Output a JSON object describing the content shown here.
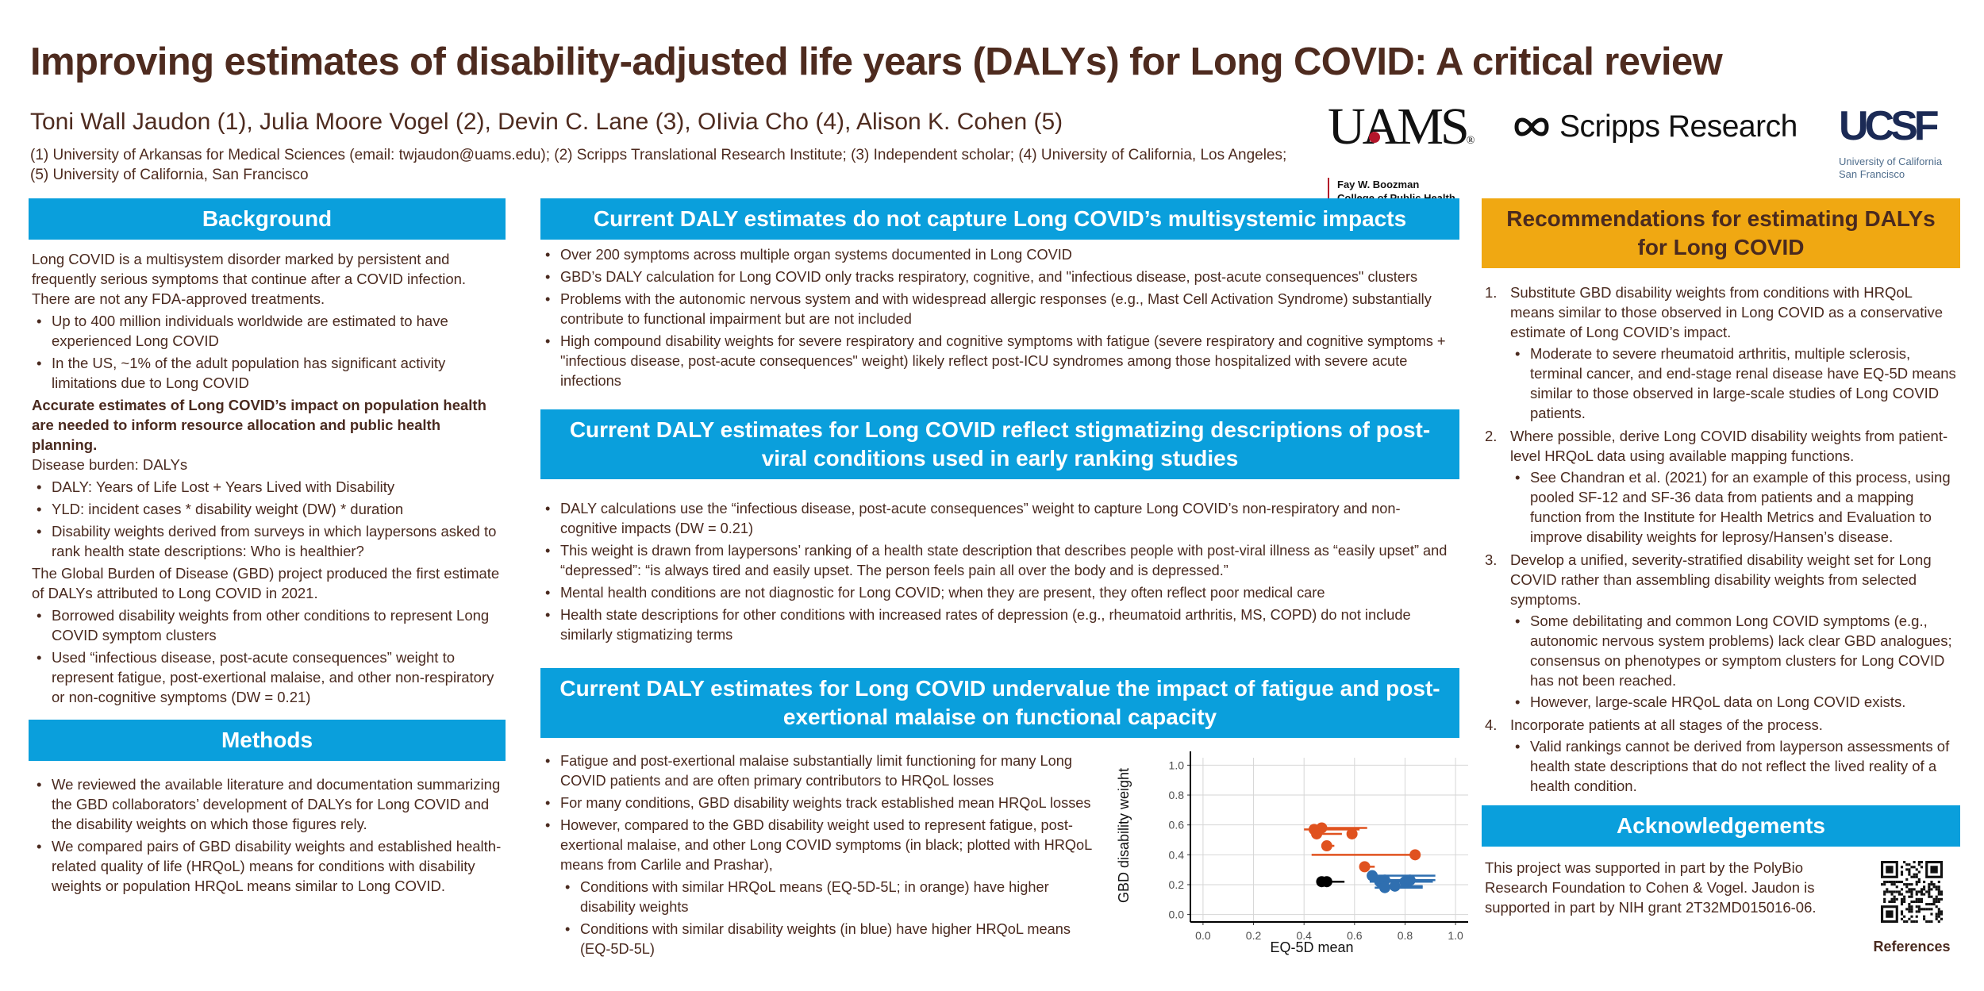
{
  "header": {
    "title": "Improving estimates of disability-adjusted life years (DALYs) for Long COVID: A critical review",
    "authors": "Toni Wall Jaudon (1), Julia Moore Vogel (2), Devin C. Lane (3), OIivia Cho (4), Alison K. Cohen (5)",
    "affiliations": "(1) University of Arkansas for Medical Sciences (email: twjaudon@uams.edu); (2) Scripps Translational Research Institute; (3) Independent scholar; (4) University of California, Los Angeles; (5) University of California, San Francisco"
  },
  "logos": {
    "uams": {
      "word": "UAMS",
      "reg": "®",
      "line1": "Fay W. Boozman",
      "line2": "College of Public Health"
    },
    "scripps": {
      "word": "Scripps Research",
      "icon": "infinity-loop-icon"
    },
    "ucsf": {
      "word": "UCSF",
      "line1": "University of California",
      "line2": "San Francisco"
    }
  },
  "colors": {
    "section_blue": "#0a9fdc",
    "section_orange": "#f0a812",
    "text_brown": "#4a2a1f",
    "series_orange": "#e0521f",
    "series_blue": "#2f6fb0",
    "series_black": "#000000"
  },
  "background": {
    "heading": "Background",
    "intro": "Long COVID is a multisystem disorder marked by persistent and frequently serious symptoms that continue after a COVID infection. There are not any FDA-approved treatments.",
    "bullets1": [
      "Up to 400 million individuals worldwide are estimated to have experienced Long COVID",
      "In the US, ~1% of the adult population has significant activity limitations due to Long COVID"
    ],
    "emphasis": "Accurate estimates of Long COVID’s impact on population health are needed to inform resource allocation and public health planning.",
    "burden_label": "Disease burden: DALYs",
    "bullets2": [
      "DALY: Years of Life Lost + Years Lived with Disability",
      "YLD: incident cases * disability weight (DW) * duration",
      "Disability weights derived from surveys in which laypersons asked to rank health state descriptions: Who is healthier?"
    ],
    "gbd_text": "The Global Burden of Disease (GBD) project produced the first estimate of DALYs attributed to Long COVID in 2021.",
    "bullets3": [
      "Borrowed disability weights from other conditions to represent Long COVID symptom clusters",
      "Used “infectious disease, post-acute consequences” weight to represent fatigue, post-exertional malaise, and other non-respiratory or non-cognitive symptoms (DW = 0.21)"
    ]
  },
  "methods": {
    "heading": "Methods",
    "bullets": [
      "We reviewed the available literature and documentation summarizing the GBD collaborators’ development of DALYs for Long COVID and the disability weights on which those figures rely.",
      "We compared pairs of GBD disability weights and established health-related quality of life (HRQoL) means for conditions with disability weights or population HRQoL means similar to Long COVID."
    ]
  },
  "multisystemic": {
    "heading": "Current DALY estimates do not capture Long COVID’s multisystemic impacts",
    "bullets": [
      "Over 200 symptoms across multiple organ systems documented in Long COVID",
      "GBD’s DALY calculation for Long COVID only tracks respiratory, cognitive, and \"infectious disease, post-acute consequences\" clusters",
      "Problems with the autonomic nervous system and with widespread allergic responses (e.g., Mast Cell Activation Syndrome) substantially contribute to functional impairment but are not included",
      "High compound disability weights for severe respiratory and cognitive symptoms with fatigue (severe respiratory and cognitive symptoms + \"infectious disease, post-acute consequences\" weight) likely reflect post-ICU syndromes among those hospitalized with severe acute infections"
    ]
  },
  "stigmatizing": {
    "heading": "Current DALY estimates for Long COVID reflect stigmatizing descriptions of post-viral conditions used in early ranking studies",
    "bullets": [
      "DALY calculations use the “infectious disease, post-acute consequences” weight to capture Long COVID’s non-respiratory and non-cognitive impacts (DW = 0.21)",
      "This weight is drawn from laypersons’ ranking of a health state description that describes people with post-viral illness as “easily upset” and “depressed”: “is always tired and easily upset. The person feels pain all over the body and is depressed.”",
      "Mental health conditions are not diagnostic for Long COVID; when they are present, they often reflect poor medical care",
      "Health state descriptions for other conditions with increased rates of depression (e.g., rheumatoid arthritis, MS, COPD) do not include similarly stigmatizing terms"
    ]
  },
  "fatigue": {
    "heading": "Current DALY estimates for Long COVID undervalue the impact of fatigue and post-exertional malaise on functional capacity",
    "bullets": [
      "Fatigue and post-exertional malaise substantially limit functioning for many Long COVID patients and are often primary contributors to HRQoL losses",
      "For many conditions, GBD disability weights track established mean HRQoL losses",
      "However, compared to the GBD disability weight used to represent fatigue, post-exertional malaise, and other Long COVID symptoms (in black; plotted with HRQoL means from Carlile and Prashar),"
    ],
    "sub_bullets": [
      "Conditions with similar HRQoL means (EQ-5D-5L; in orange) have higher disability weights",
      "Conditions with similar disability weights (in blue) have higher HRQoL means (EQ-5D-5L)"
    ]
  },
  "chart_data": {
    "type": "scatter",
    "title": "",
    "xlabel": "EQ-5D mean",
    "ylabel": "GBD disability weight",
    "xlim": [
      0,
      1
    ],
    "ylim": [
      0,
      1
    ],
    "xticks": [
      "0.0",
      "0.2",
      "0.4",
      "0.6",
      "0.8",
      "1.0"
    ],
    "yticks": [
      "0.0",
      "0.2",
      "0.4",
      "0.6",
      "0.8",
      "1.0"
    ],
    "grid": true,
    "legend": "none",
    "series": [
      {
        "name": "Similar HRQoL means (orange)",
        "color": "#e0521f",
        "points": [
          {
            "x": 0.44,
            "y": 0.57,
            "xmin": 0.4,
            "xmax": 0.62
          },
          {
            "x": 0.47,
            "y": 0.58,
            "xmin": 0.44,
            "xmax": 0.65
          },
          {
            "x": 0.45,
            "y": 0.54,
            "xmin": 0.43,
            "xmax": 0.55
          },
          {
            "x": 0.59,
            "y": 0.54,
            "xmin": 0.59,
            "xmax": 0.59
          },
          {
            "x": 0.49,
            "y": 0.46,
            "xmin": 0.49,
            "xmax": 0.52
          },
          {
            "x": 0.84,
            "y": 0.4,
            "xmin": 0.43,
            "xmax": 0.84
          },
          {
            "x": 0.64,
            "y": 0.32,
            "xmin": 0.64,
            "xmax": 0.68
          }
        ]
      },
      {
        "name": "Long COVID (black)",
        "color": "#000000",
        "points": [
          {
            "x": 0.47,
            "y": 0.22,
            "xmin": 0.47,
            "xmax": 0.56
          },
          {
            "x": 0.49,
            "y": 0.22,
            "xmin": 0.49,
            "xmax": 0.56
          }
        ]
      },
      {
        "name": "Similar disability weights (blue)",
        "color": "#2f6fb0",
        "points": [
          {
            "x": 0.67,
            "y": 0.26,
            "xmin": 0.65,
            "xmax": 0.92
          },
          {
            "x": 0.7,
            "y": 0.22,
            "xmin": 0.66,
            "xmax": 0.91
          },
          {
            "x": 0.72,
            "y": 0.23,
            "xmin": 0.68,
            "xmax": 0.88
          },
          {
            "x": 0.72,
            "y": 0.18,
            "xmin": 0.68,
            "xmax": 0.87
          },
          {
            "x": 0.76,
            "y": 0.19,
            "xmin": 0.76,
            "xmax": 0.87
          },
          {
            "x": 0.8,
            "y": 0.22,
            "xmin": 0.7,
            "xmax": 0.91
          },
          {
            "x": 0.82,
            "y": 0.23,
            "xmin": 0.72,
            "xmax": 0.92
          }
        ]
      }
    ]
  },
  "recommendations": {
    "heading": "Recommendations for estimating DALYs for Long COVID",
    "items": [
      {
        "num": "1.",
        "text": "Substitute GBD disability weights from conditions with HRQoL means similar to those observed in Long COVID as a conservative estimate of Long COVID’s impact.",
        "sub": [
          "Moderate to severe rheumatoid arthritis, multiple sclerosis, terminal cancer, and end-stage renal disease have EQ-5D means similar to those observed in large-scale studies of Long COVID patients."
        ]
      },
      {
        "num": "2.",
        "text": "Where possible, derive Long COVID disability weights from patient-level HRQoL data using available mapping functions.",
        "sub": [
          "See Chandran et al. (2021) for an example of this process, using pooled SF-12 and SF-36 data from patients and a mapping function from the Institute for Health Metrics and Evaluation to improve disability weights for leprosy/Hansen’s disease."
        ]
      },
      {
        "num": "3.",
        "text": "Develop a unified, severity-stratified disability weight set for Long COVID rather than assembling disability weights from selected symptoms.",
        "sub": [
          "Some debilitating and common Long COVID symptoms (e.g., autonomic nervous system problems) lack clear GBD analogues; consensus on phenotypes or symptom clusters for Long COVID has not been reached.",
          "However, large-scale HRQoL data on Long COVID exists."
        ]
      },
      {
        "num": "4.",
        "text": "Incorporate patients at all stages of the process.",
        "sub": [
          "Valid rankings cannot be derived from layperson assessments of health state descriptions that do not reflect the lived reality of a health condition."
        ]
      }
    ]
  },
  "acknowledgements": {
    "heading": "Acknowledgements",
    "text": "This project was supported in part by the PolyBio Research Foundation to Cohen & Vogel. Jaudon is supported in part by NIH grant 2T32MD015016-06.",
    "qr_icon": "qr-code-icon",
    "references_label": "References"
  }
}
